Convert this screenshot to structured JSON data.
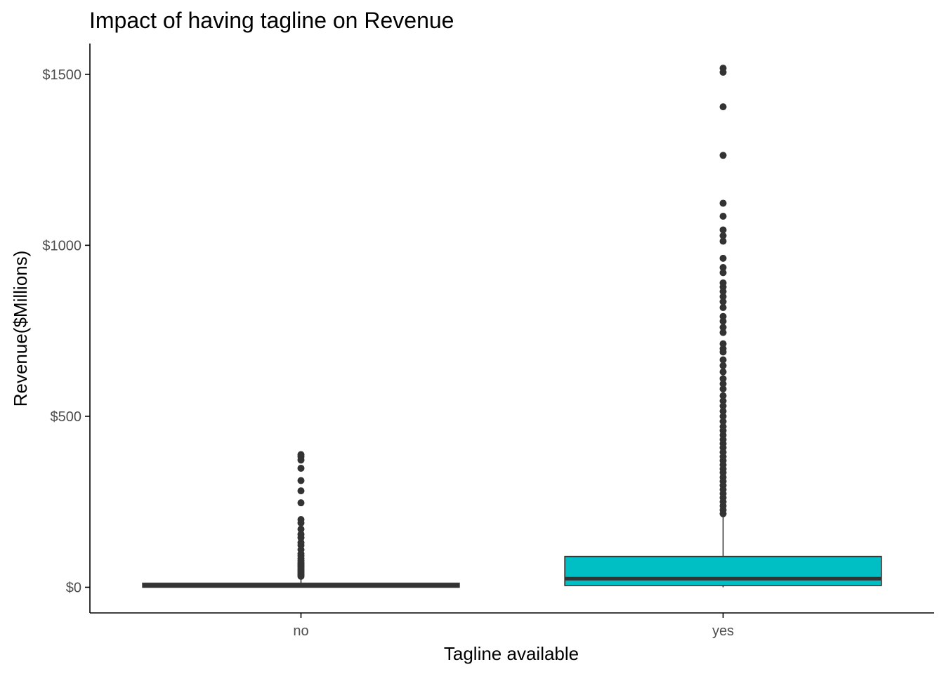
{
  "chart_data": {
    "type": "boxplot",
    "title": "Impact of having tagline on Revenue",
    "xlabel": "Tagline available",
    "ylabel": "Revenue($Millions)",
    "categories": [
      "no",
      "yes"
    ],
    "ylim": [
      -75,
      1590
    ],
    "yticks": [
      0,
      500,
      1000,
      1500
    ],
    "ytick_labels": [
      "$0",
      "$500",
      "$1000",
      "$1500"
    ],
    "grid": false,
    "legend": "none",
    "boxes": [
      {
        "category": "no",
        "color": "#F8766D",
        "min": 0,
        "q1": 0,
        "median": 5,
        "q3": 12,
        "max": 25,
        "outliers": [
          388,
          382,
          372,
          348,
          312,
          282,
          247,
          198,
          188,
          170,
          155,
          145,
          131,
          123,
          110,
          98,
          92,
          84,
          78,
          72,
          68,
          64,
          60,
          56,
          52,
          48,
          44,
          40,
          36,
          32
        ]
      },
      {
        "category": "yes",
        "color": "#00BFC4",
        "min": 0,
        "q1": 5,
        "median": 25,
        "q3": 90,
        "max": 210,
        "outliers": [
          1518,
          1506,
          1405,
          1263,
          1123,
          1085,
          1045,
          1028,
          1012,
          962,
          935,
          920,
          890,
          878,
          865,
          850,
          835,
          818,
          792,
          778,
          760,
          745,
          712,
          698,
          688,
          665,
          648,
          630,
          610,
          595,
          580,
          560,
          545,
          530,
          515,
          500,
          485,
          470,
          458,
          445,
          432,
          420,
          408,
          395,
          382,
          370,
          358,
          346,
          335,
          322,
          310,
          298,
          286,
          274,
          262,
          250,
          238,
          226,
          215
        ]
      }
    ]
  }
}
